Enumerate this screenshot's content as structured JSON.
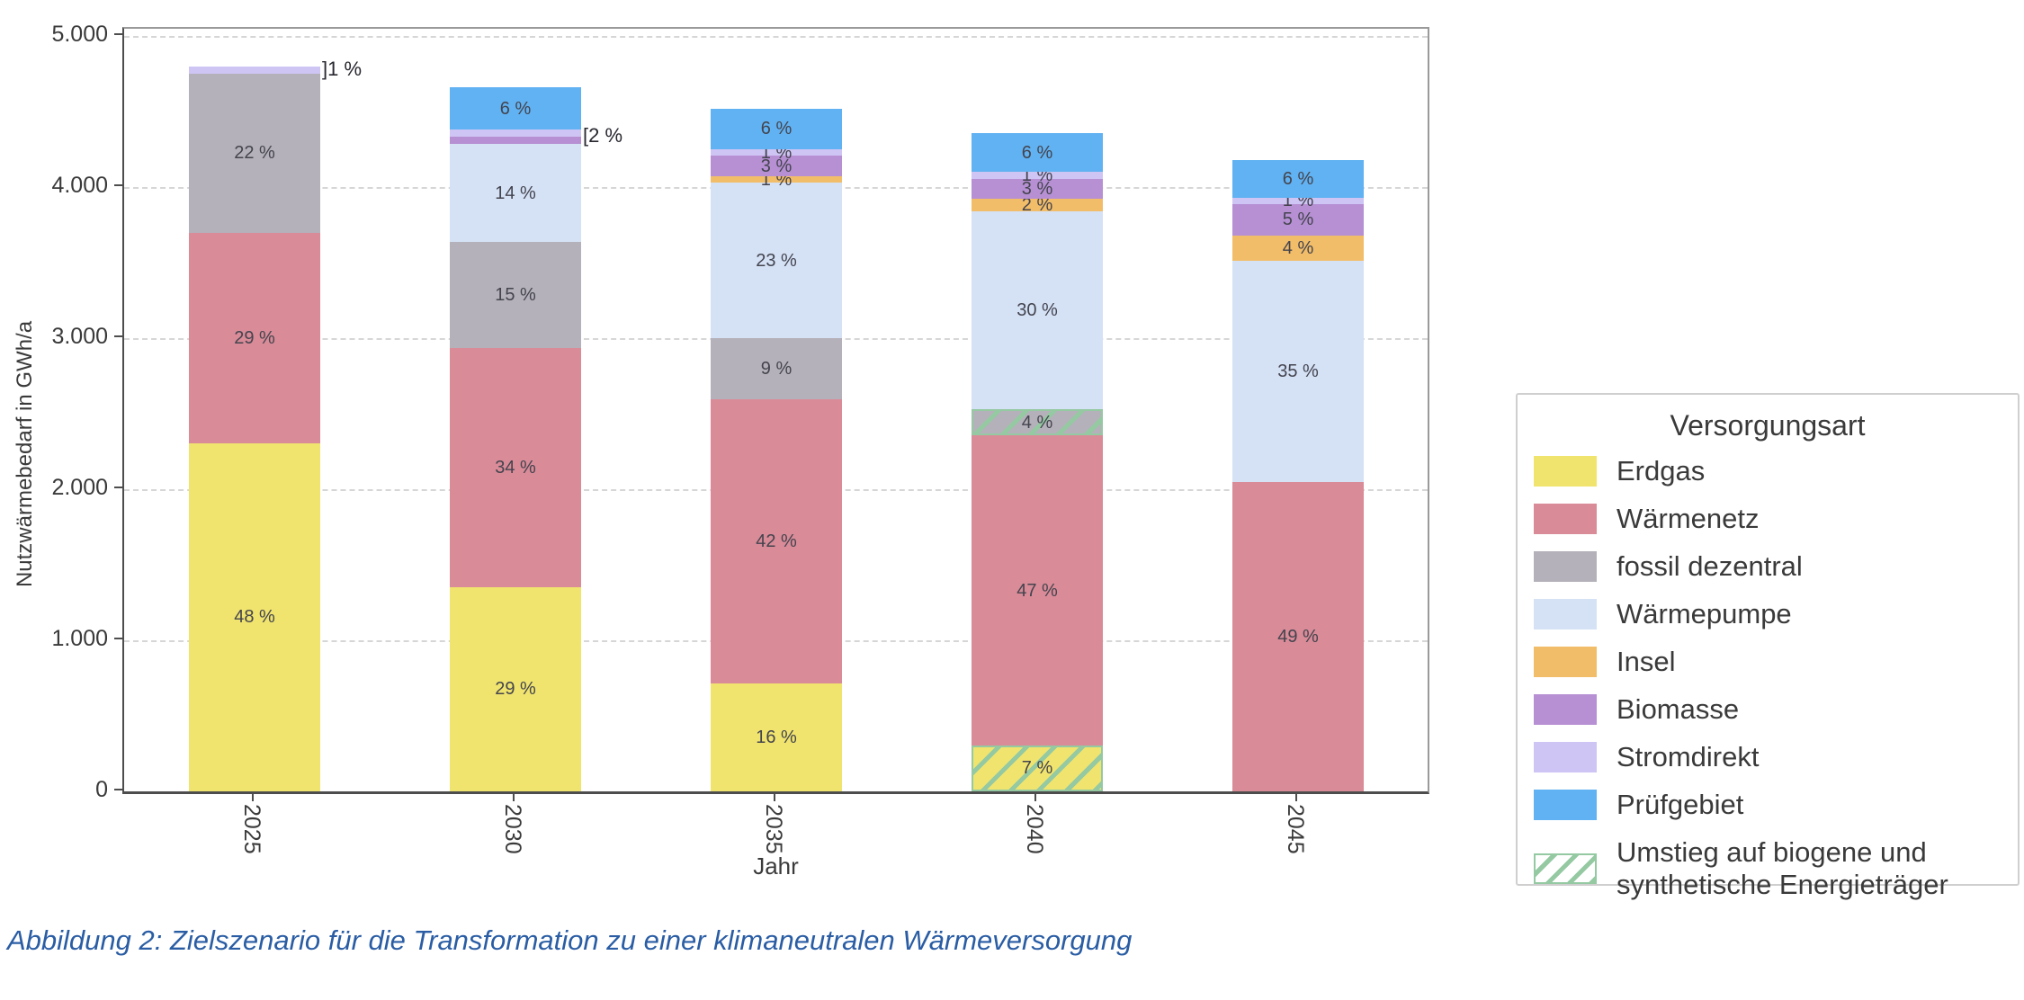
{
  "figure": {
    "caption": "Abbildung 2: Zielszenario für die Transformation zu einer klimaneutralen Wärmeversorgung"
  },
  "legend": {
    "title": "Versorgungsart",
    "items": [
      {
        "label": "Erdgas",
        "color": "#f0e46e",
        "hatch": false
      },
      {
        "label": "Wärmenetz",
        "color": "#d98b98",
        "hatch": false
      },
      {
        "label": "fossil dezentral",
        "color": "#b5b1ba",
        "hatch": false
      },
      {
        "label": "Wärmepumpe",
        "color": "#d5e2f6",
        "hatch": false
      },
      {
        "label": "Insel",
        "color": "#f2bd68",
        "hatch": false
      },
      {
        "label": "Biomasse",
        "color": "#b690d3",
        "hatch": false
      },
      {
        "label": "Stromdirekt",
        "color": "#cfc5f4",
        "hatch": false
      },
      {
        "label": "Prüfgebiet",
        "color": "#61b2f2",
        "hatch": false
      },
      {
        "label": "Umstieg auf biogene und synthetische Energieträger",
        "color": "#ffffff",
        "hatch": true
      }
    ]
  },
  "chart_data": {
    "type": "bar",
    "stacked": true,
    "title": "",
    "xlabel": "Jahr",
    "ylabel": "Nutzwärmebedarf in GWh/a",
    "ylim": [
      0,
      5000
    ],
    "grid": "horizontal dashed",
    "legend_position": "right of plot",
    "yticks": [
      {
        "value": 0,
        "label": "0"
      },
      {
        "value": 1000,
        "label": "1.000"
      },
      {
        "value": 2000,
        "label": "2.000"
      },
      {
        "value": 3000,
        "label": "3.000"
      },
      {
        "value": 4000,
        "label": "4.000"
      },
      {
        "value": 5000,
        "label": "5.000"
      }
    ],
    "categories": [
      "2025",
      "2030",
      "2035",
      "2040",
      "2045"
    ],
    "totals_gwh": [
      4800,
      4660,
      4520,
      4360,
      4180
    ],
    "unit": "percent of yearly total",
    "series": [
      {
        "name": "Erdgas",
        "color": "#f0e46e",
        "values": [
          48,
          29,
          16,
          7,
          0
        ],
        "labels": [
          "48 %",
          "29 %",
          "16 %",
          "7 %",
          ""
        ],
        "hatch": [
          false,
          false,
          false,
          true,
          false
        ]
      },
      {
        "name": "Wärmenetz",
        "color": "#d98b98",
        "values": [
          29,
          34,
          42,
          47,
          49
        ],
        "labels": [
          "29 %",
          "34 %",
          "42 %",
          "47 %",
          "49 %"
        ],
        "hatch": [
          false,
          false,
          false,
          false,
          false
        ]
      },
      {
        "name": "fossil dezentral",
        "color": "#b5b1ba",
        "values": [
          22,
          15,
          9,
          4,
          0
        ],
        "labels": [
          "22 %",
          "15 %",
          "9 %",
          "4 %",
          ""
        ],
        "hatch": [
          false,
          false,
          false,
          true,
          false
        ]
      },
      {
        "name": "Wärmepumpe",
        "color": "#d5e2f6",
        "values": [
          0,
          14,
          23,
          30,
          35
        ],
        "labels": [
          "",
          "14 %",
          "23 %",
          "30 %",
          "35 %"
        ],
        "hatch": [
          false,
          false,
          false,
          false,
          false
        ]
      },
      {
        "name": "Insel",
        "color": "#f2bd68",
        "values": [
          0,
          0,
          1,
          2,
          4
        ],
        "labels": [
          "",
          "",
          "1 %",
          "2 %",
          "4 %"
        ],
        "hatch": [
          false,
          false,
          false,
          false,
          false
        ]
      },
      {
        "name": "Biomasse",
        "color": "#b690d3",
        "values": [
          0,
          1,
          3,
          3,
          5
        ],
        "labels": [
          "",
          "",
          "3 %",
          "3 %",
          "5 %"
        ],
        "hatch": [
          false,
          false,
          false,
          false,
          false
        ]
      },
      {
        "name": "Stromdirekt",
        "color": "#cfc5f4",
        "values": [
          1,
          1,
          1,
          1,
          1
        ],
        "labels": [
          "",
          "",
          "1 %",
          "1 %",
          "1 %"
        ],
        "hatch": [
          false,
          false,
          false,
          false,
          false
        ]
      },
      {
        "name": "Prüfgebiet",
        "color": "#61b2f2",
        "values": [
          0,
          6,
          6,
          6,
          6
        ],
        "labels": [
          "",
          "6 %",
          "6 %",
          "6 %",
          "6 %"
        ],
        "hatch": [
          false,
          false,
          false,
          false,
          false
        ]
      }
    ],
    "annotations": [
      {
        "category": "2025",
        "text": "]1 %",
        "at_pct": 99.5
      },
      {
        "category": "2030",
        "text": "[2 %",
        "at_pct": 93
      }
    ],
    "hatch_meaning": "Umstieg auf biogene und synthetische Energieträger",
    "hatch_color": "#94c9a2"
  }
}
